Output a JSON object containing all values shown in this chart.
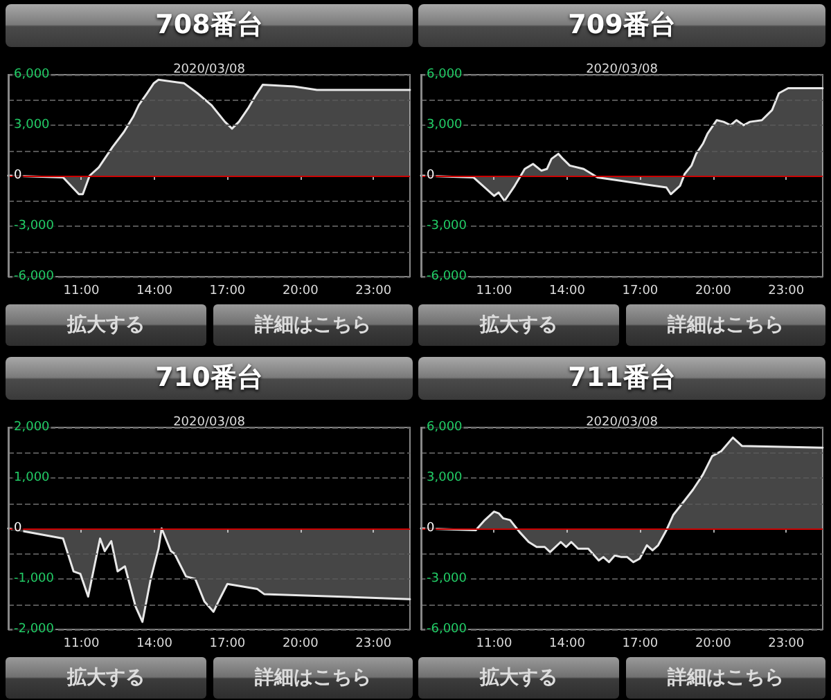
{
  "chart_data": [
    {
      "type": "area",
      "title": "708番台",
      "subtitle": "2020/03/08",
      "annotations": [
        "拡大する",
        "詳細はこちら"
      ],
      "color": "#e8e8e8",
      "grid": "y",
      "xlim": [
        8,
        24.5
      ],
      "xticks": [
        {
          "value": 11,
          "label": "11:00"
        },
        {
          "value": 14,
          "label": "14:00"
        },
        {
          "value": 17,
          "label": "17:00"
        },
        {
          "value": 20,
          "label": "20:00"
        },
        {
          "value": 23,
          "label": "23:00"
        }
      ],
      "ylim": [
        -6000,
        6000
      ],
      "yticks": [
        {
          "value": -6000,
          "label": "-6,000"
        },
        {
          "value": -4500,
          "label": null
        },
        {
          "value": -3000,
          "label": "-3,000"
        },
        {
          "value": -1500,
          "label": null
        },
        {
          "value": 0,
          "label": "0"
        },
        {
          "value": 1500,
          "label": null
        },
        {
          "value": 3000,
          "label": "3,000"
        },
        {
          "value": 4500,
          "label": null
        },
        {
          "value": 6000,
          "label": "6,000"
        }
      ],
      "ref_lines": [
        {
          "axis": "y",
          "value": 0,
          "color": "#cc0000"
        }
      ],
      "x": [
        8,
        10.25,
        10.9,
        11.06,
        11.34,
        11.72,
        12.28,
        12.75,
        13.13,
        13.36,
        13.7,
        13.98,
        14.17,
        15.21,
        15.77,
        16.34,
        16.9,
        17.19,
        17.47,
        17.85,
        18.13,
        18.45,
        19.74,
        20.68,
        24.5
      ],
      "values": [
        0,
        -100,
        -1100,
        -1100,
        0,
        500,
        1700,
        2600,
        3500,
        4200,
        4900,
        5500,
        5700,
        5500,
        4900,
        4200,
        3200,
        2800,
        3200,
        4000,
        4700,
        5400,
        5300,
        5100,
        5100
      ]
    },
    {
      "type": "area",
      "title": "709番台",
      "subtitle": "2020/03/08",
      "annotations": [
        "拡大する",
        "詳細はこちら"
      ],
      "color": "#e8e8e8",
      "grid": "y",
      "xlim": [
        8,
        24.5
      ],
      "xticks": [
        {
          "value": 11,
          "label": "11:00"
        },
        {
          "value": 14,
          "label": "14:00"
        },
        {
          "value": 17,
          "label": "17:00"
        },
        {
          "value": 20,
          "label": "20:00"
        },
        {
          "value": 23,
          "label": "23:00"
        }
      ],
      "ylim": [
        -6000,
        6000
      ],
      "yticks": [
        {
          "value": -6000,
          "label": "-6,000"
        },
        {
          "value": -4500,
          "label": null
        },
        {
          "value": -3000,
          "label": "-3,000"
        },
        {
          "value": -1500,
          "label": null
        },
        {
          "value": 0,
          "label": "0"
        },
        {
          "value": 1500,
          "label": null
        },
        {
          "value": 3000,
          "label": "3,000"
        },
        {
          "value": 4500,
          "label": null
        },
        {
          "value": 6000,
          "label": "6,000"
        }
      ],
      "ref_lines": [
        {
          "axis": "y",
          "value": 0,
          "color": "#cc0000"
        }
      ],
      "x": [
        8,
        10.15,
        10.62,
        11,
        11.19,
        11.43,
        11.85,
        12.26,
        12.6,
        12.94,
        13.17,
        13.36,
        13.64,
        13.83,
        14.11,
        14.68,
        15.25,
        16.19,
        17.13,
        18.08,
        18.26,
        18.64,
        18.83,
        19.11,
        19.3,
        19.58,
        19.77,
        20.15,
        20.43,
        20.72,
        20.96,
        21.25,
        21.51,
        22,
        22.42,
        22.7,
        23.08,
        24.5
      ],
      "values": [
        0,
        -100,
        -700,
        -1200,
        -1000,
        -1500,
        -600,
        400,
        700,
        300,
        400,
        1000,
        1300,
        1000,
        600,
        400,
        -100,
        -300,
        -500,
        -700,
        -1100,
        -600,
        100,
        600,
        1300,
        1900,
        2500,
        3300,
        3200,
        3000,
        3300,
        3000,
        3200,
        3300,
        3900,
        4900,
        5200,
        5200
      ]
    },
    {
      "type": "area",
      "title": "710番台",
      "subtitle": "2020/03/08",
      "annotations": [
        "拡大する",
        "詳細はこちら"
      ],
      "color": "#e8e8e8",
      "grid": "y",
      "xlim": [
        8,
        24.5
      ],
      "xticks": [
        {
          "value": 11,
          "label": "11:00"
        },
        {
          "value": 14,
          "label": "14:00"
        },
        {
          "value": 17,
          "label": "17:00"
        },
        {
          "value": 20,
          "label": "20:00"
        },
        {
          "value": 23,
          "label": "23:00"
        }
      ],
      "ylim": [
        -2000,
        2000
      ],
      "yticks": [
        {
          "value": -2000,
          "label": "-2,000"
        },
        {
          "value": -1500,
          "label": null
        },
        {
          "value": -1000,
          "label": "-1,000"
        },
        {
          "value": -500,
          "label": null
        },
        {
          "value": 0,
          "label": "0"
        },
        {
          "value": 500,
          "label": null
        },
        {
          "value": 1000,
          "label": "1,000"
        },
        {
          "value": 1500,
          "label": null
        },
        {
          "value": 2000,
          "label": "2,000"
        }
      ],
      "ref_lines": [
        {
          "axis": "y",
          "value": 0,
          "color": "#cc0000"
        }
      ],
      "x": [
        8,
        10.25,
        10.68,
        10.96,
        11.28,
        11.77,
        11.96,
        12.23,
        12.49,
        12.79,
        13.23,
        13.51,
        13.85,
        14.17,
        14.3,
        14.68,
        14.83,
        15.3,
        15.68,
        16.06,
        16.43,
        16.68,
        17,
        18.23,
        18.51,
        24.5
      ],
      "values": [
        0,
        -200,
        -850,
        -900,
        -1350,
        -200,
        -450,
        -250,
        -850,
        -750,
        -1550,
        -1850,
        -1000,
        -400,
        0,
        -450,
        -500,
        -950,
        -1000,
        -1450,
        -1650,
        -1400,
        -1100,
        -1200,
        -1300,
        -1400
      ]
    },
    {
      "type": "area",
      "title": "711番台",
      "subtitle": "2020/03/08",
      "annotations": [
        "拡大する",
        "詳細はこちら"
      ],
      "color": "#e8e8e8",
      "grid": "y",
      "xlim": [
        8,
        24.5
      ],
      "xticks": [
        {
          "value": 11,
          "label": "11:00"
        },
        {
          "value": 14,
          "label": "14:00"
        },
        {
          "value": 17,
          "label": "17:00"
        },
        {
          "value": 20,
          "label": "20:00"
        },
        {
          "value": 23,
          "label": "23:00"
        }
      ],
      "ylim": [
        -6000,
        6000
      ],
      "yticks": [
        {
          "value": -6000,
          "label": "-6,000"
        },
        {
          "value": -4500,
          "label": null
        },
        {
          "value": -3000,
          "label": "-3,000"
        },
        {
          "value": -1500,
          "label": null
        },
        {
          "value": 0,
          "label": "0"
        },
        {
          "value": 1500,
          "label": null
        },
        {
          "value": 3000,
          "label": "3,000"
        },
        {
          "value": 4500,
          "label": null
        },
        {
          "value": 6000,
          "label": "6,000"
        }
      ],
      "ref_lines": [
        {
          "axis": "y",
          "value": 0,
          "color": "#cc0000"
        }
      ],
      "x": [
        8,
        10.25,
        10.62,
        11,
        11.19,
        11.38,
        11.66,
        12.04,
        12.42,
        12.75,
        13.08,
        13.3,
        13.74,
        13.96,
        14.17,
        14.45,
        14.87,
        15.3,
        15.49,
        15.72,
        15.96,
        16.23,
        16.47,
        16.72,
        16.98,
        17.28,
        17.51,
        17.74,
        18.08,
        18.36,
        18.74,
        19.17,
        19.58,
        19.96,
        20.34,
        20.81,
        21.19,
        24.5
      ],
      "values": [
        0,
        -100,
        500,
        1000,
        900,
        600,
        500,
        -200,
        -800,
        -1100,
        -1100,
        -1400,
        -800,
        -1100,
        -800,
        -1200,
        -1200,
        -1900,
        -1700,
        -2000,
        -1600,
        -1700,
        -1700,
        -2000,
        -1800,
        -1000,
        -1300,
        -1000,
        -100,
        800,
        1500,
        2300,
        3200,
        4300,
        4600,
        5400,
        4900,
        4800
      ]
    }
  ]
}
